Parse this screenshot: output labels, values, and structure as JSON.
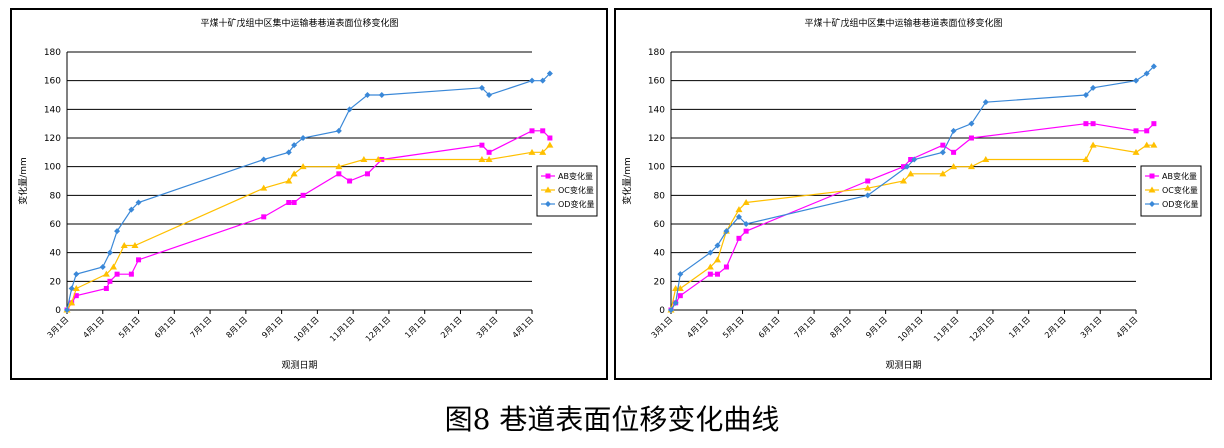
{
  "caption": "图8 巷道表面位移变化曲线",
  "chart_data": [
    {
      "type": "line",
      "title": "平煤十矿戊组中区集中运输巷巷道表面位移变化图",
      "xlabel": "观测日期",
      "ylabel": "变化量/mm",
      "ylim": [
        0,
        180
      ],
      "yticks": [
        0,
        20,
        40,
        60,
        80,
        100,
        120,
        140,
        160,
        180
      ],
      "x_unit": "month offset from 3月1日",
      "xlim": [
        0,
        13
      ],
      "xticks": [
        "3月1日",
        "4月1日",
        "5月1日",
        "6月1日",
        "7月1日",
        "8月1日",
        "9月1日",
        "10月1日",
        "11月1日",
        "12月1日",
        "1月1日",
        "2月1日",
        "3月1日",
        "4月1日"
      ],
      "grid": "horizontal",
      "legend_position": "right",
      "series": [
        {
          "name": "AB变化量",
          "color": "#ff00ff",
          "marker": "square",
          "x": [
            0.0,
            0.13,
            0.26,
            1.1,
            1.2,
            1.4,
            1.8,
            2.0,
            5.5,
            6.2,
            6.35,
            6.6,
            7.6,
            7.9,
            8.4,
            8.8,
            11.6,
            11.8,
            13.0,
            13.3,
            13.5
          ],
          "y": [
            0,
            5,
            10,
            15,
            20,
            25,
            25,
            35,
            65,
            75,
            75,
            80,
            95,
            90,
            95,
            105,
            115,
            110,
            125,
            125,
            120
          ]
        },
        {
          "name": "OC变化量",
          "color": "#ffc000",
          "marker": "triangle",
          "x": [
            0.0,
            0.13,
            0.26,
            1.1,
            1.3,
            1.6,
            1.9,
            5.5,
            6.2,
            6.35,
            6.6,
            7.6,
            8.3,
            8.7,
            11.6,
            11.8,
            13.0,
            13.3,
            13.5
          ],
          "y": [
            0,
            5,
            15,
            25,
            30,
            45,
            45,
            85,
            90,
            95,
            100,
            100,
            105,
            105,
            105,
            105,
            110,
            110,
            115
          ]
        },
        {
          "name": "OD变化量",
          "color": "#3a88d8",
          "marker": "diamond",
          "x": [
            0.0,
            0.13,
            0.26,
            1.0,
            1.2,
            1.4,
            1.8,
            2.0,
            5.5,
            6.2,
            6.35,
            6.6,
            7.6,
            7.9,
            8.4,
            8.8,
            11.6,
            11.8,
            13.0,
            13.3,
            13.5
          ],
          "y": [
            0,
            15,
            25,
            30,
            40,
            55,
            70,
            75,
            105,
            110,
            115,
            120,
            125,
            140,
            150,
            150,
            155,
            150,
            160,
            160,
            165
          ]
        }
      ]
    },
    {
      "type": "line",
      "title": "平煤十矿戊组中区集中运输巷巷道表面位移变化图",
      "xlabel": "观测日期",
      "ylabel": "变化量/mm",
      "ylim": [
        0,
        180
      ],
      "yticks": [
        0,
        20,
        40,
        60,
        80,
        100,
        120,
        140,
        160,
        180
      ],
      "x_unit": "month offset from 3月1日",
      "xlim": [
        0,
        13
      ],
      "xticks": [
        "3月1日",
        "4月1日",
        "5月1日",
        "6月1日",
        "7月1日",
        "8月1日",
        "9月1日",
        "10月1日",
        "11月1日",
        "12月1日",
        "1月1日",
        "2月1日",
        "3月1日",
        "4月1日"
      ],
      "grid": "horizontal",
      "legend_position": "right",
      "series": [
        {
          "name": "AB变化量",
          "color": "#ff00ff",
          "marker": "square",
          "x": [
            0.0,
            0.13,
            0.26,
            1.1,
            1.3,
            1.55,
            1.9,
            2.1,
            5.5,
            6.5,
            6.7,
            7.6,
            7.9,
            8.4,
            11.6,
            11.8,
            13.0,
            13.3,
            13.5
          ],
          "y": [
            0,
            5,
            10,
            25,
            25,
            30,
            50,
            55,
            90,
            100,
            105,
            115,
            110,
            120,
            130,
            130,
            125,
            125,
            130
          ]
        },
        {
          "name": "OC变化量",
          "color": "#ffc000",
          "marker": "triangle",
          "x": [
            0.0,
            0.13,
            0.26,
            1.1,
            1.3,
            1.55,
            1.9,
            2.1,
            5.5,
            6.5,
            6.7,
            7.6,
            7.9,
            8.4,
            8.8,
            11.6,
            11.8,
            13.0,
            13.3,
            13.5
          ],
          "y": [
            0,
            15,
            15,
            30,
            35,
            55,
            70,
            75,
            85,
            90,
            95,
            95,
            100,
            100,
            105,
            105,
            115,
            110,
            115,
            115
          ]
        },
        {
          "name": "OD变化量",
          "color": "#3a88d8",
          "marker": "diamond",
          "x": [
            0.0,
            0.13,
            0.26,
            1.1,
            1.3,
            1.55,
            1.9,
            2.1,
            5.5,
            6.6,
            6.8,
            7.6,
            7.9,
            8.4,
            8.8,
            11.6,
            11.8,
            13.0,
            13.3,
            13.5
          ],
          "y": [
            0,
            5,
            25,
            40,
            45,
            55,
            65,
            60,
            80,
            100,
            105,
            110,
            125,
            130,
            145,
            150,
            155,
            160,
            165,
            170
          ]
        }
      ]
    }
  ]
}
